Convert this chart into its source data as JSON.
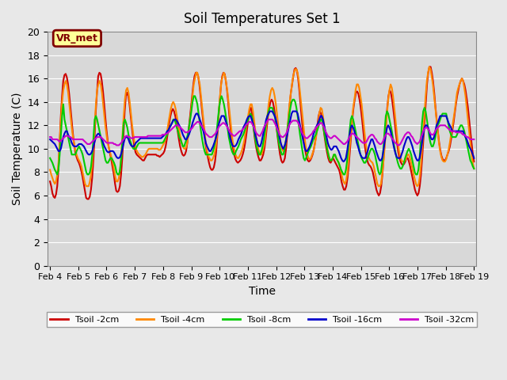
{
  "title": "Soil Temperatures Set 1",
  "xlabel": "Time",
  "ylabel": "Soil Temperature (C)",
  "ylim": [
    0,
    20
  ],
  "xlim": [
    0,
    360
  ],
  "background_color": "#e8e8e8",
  "plot_bg_color": "#d8d8d8",
  "grid_color": "#ffffff",
  "label_text": "VR_met",
  "label_bg": "#ffff99",
  "label_border": "#800000",
  "label_text_color": "#800000",
  "xtick_labels": [
    "Feb 4",
    "Feb 5",
    "Feb 6",
    "Feb 7",
    "Feb 8",
    "Feb 9",
    "Feb 10",
    "Feb 11",
    "Feb 12",
    "Feb 13",
    "Feb 14",
    "Feb 15",
    "Feb 16",
    "Feb 17",
    "Feb 18",
    "Feb 19"
  ],
  "series": {
    "Tsoil -2cm": {
      "color": "#cc0000",
      "lw": 1.5
    },
    "Tsoil -4cm": {
      "color": "#ff8800",
      "lw": 1.5
    },
    "Tsoil -8cm": {
      "color": "#00cc00",
      "lw": 1.5
    },
    "Tsoil -16cm": {
      "color": "#0000cc",
      "lw": 1.5
    },
    "Tsoil -32cm": {
      "color": "#cc00cc",
      "lw": 1.5
    }
  },
  "n_points": 361,
  "t2cm_raw": [
    7.2,
    6.8,
    6.2,
    5.9,
    5.8,
    6.1,
    6.8,
    8.2,
    10.5,
    12.8,
    14.5,
    15.8,
    16.3,
    16.4,
    16.1,
    15.5,
    14.6,
    13.5,
    12.4,
    11.3,
    10.4,
    9.7,
    9.3,
    9.0,
    8.8,
    8.5,
    8.1,
    7.6,
    7.0,
    6.4,
    5.8,
    5.7,
    5.7,
    5.9,
    6.5,
    7.5,
    9.0,
    11.0,
    13.2,
    14.8,
    16.2,
    16.5,
    16.4,
    15.8,
    14.9,
    13.8,
    12.6,
    11.5,
    10.6,
    10.0,
    9.5,
    9.0,
    8.4,
    7.8,
    7.0,
    6.4,
    6.3,
    6.4,
    6.8,
    7.8,
    9.2,
    11.2,
    13.2,
    14.5,
    14.8,
    14.5,
    13.8,
    12.8,
    11.8,
    10.9,
    10.2,
    9.7,
    9.5,
    9.4,
    9.3,
    9.2,
    9.1,
    9.0,
    9.0,
    9.2,
    9.4,
    9.5,
    9.5,
    9.5,
    9.5,
    9.5,
    9.5,
    9.5,
    9.5,
    9.4,
    9.4,
    9.3,
    9.4,
    9.5,
    9.6,
    9.8,
    10.2,
    10.8,
    11.5,
    12.2,
    12.8,
    13.2,
    13.4,
    13.2,
    12.8,
    12.2,
    11.5,
    10.8,
    10.2,
    9.8,
    9.5,
    9.4,
    9.5,
    9.8,
    10.5,
    11.5,
    12.5,
    13.5,
    14.5,
    15.5,
    16.2,
    16.5,
    16.5,
    16.2,
    15.5,
    14.5,
    13.5,
    12.5,
    11.5,
    10.5,
    9.8,
    9.3,
    8.8,
    8.4,
    8.2,
    8.2,
    8.4,
    8.9,
    9.8,
    11.2,
    12.8,
    14.2,
    15.5,
    16.2,
    16.5,
    16.4,
    15.8,
    15.0,
    13.9,
    12.7,
    11.6,
    10.7,
    10.0,
    9.5,
    9.1,
    8.9,
    8.8,
    8.9,
    9.0,
    9.2,
    9.5,
    9.9,
    10.5,
    11.2,
    12.0,
    12.8,
    13.4,
    13.5,
    12.8,
    11.8,
    10.9,
    10.2,
    9.7,
    9.3,
    9.0,
    9.0,
    9.2,
    9.5,
    10.0,
    10.8,
    11.8,
    12.8,
    13.5,
    14.0,
    14.2,
    14.0,
    13.5,
    12.8,
    11.9,
    11.0,
    10.2,
    9.5,
    9.0,
    8.8,
    8.9,
    9.2,
    10.0,
    11.2,
    12.5,
    13.8,
    14.8,
    15.5,
    16.2,
    16.8,
    16.9,
    16.7,
    16.0,
    15.0,
    13.8,
    12.6,
    11.5,
    10.5,
    9.8,
    9.3,
    9.0,
    8.9,
    9.0,
    9.2,
    9.5,
    9.9,
    10.5,
    11.2,
    12.0,
    12.8,
    13.2,
    13.0,
    12.5,
    11.8,
    11.0,
    10.3,
    9.7,
    9.2,
    8.9,
    8.8,
    9.0,
    9.2,
    9.0,
    8.8,
    8.6,
    8.4,
    8.2,
    7.8,
    7.2,
    6.8,
    6.5,
    6.5,
    6.8,
    7.5,
    8.5,
    9.8,
    11.2,
    12.5,
    13.5,
    14.2,
    14.8,
    14.9,
    14.7,
    14.2,
    13.5,
    12.6,
    11.6,
    10.6,
    9.8,
    9.2,
    8.8,
    8.6,
    8.5,
    8.3,
    8.0,
    7.5,
    7.0,
    6.5,
    6.2,
    6.0,
    6.2,
    6.8,
    7.8,
    9.2,
    10.8,
    12.2,
    13.5,
    14.5,
    15.0,
    14.8,
    14.2,
    13.4,
    12.5,
    11.5,
    10.6,
    9.8,
    9.3,
    8.9,
    8.7,
    8.6,
    8.7,
    8.9,
    9.2,
    9.2,
    8.9,
    8.5,
    8.0,
    7.5,
    7.0,
    6.5,
    6.2,
    6.0,
    6.2,
    6.8,
    7.8,
    9.2,
    10.8,
    12.5,
    14.0,
    15.5,
    16.5,
    17.0,
    17.0,
    16.5,
    15.8,
    14.8,
    13.6,
    12.5,
    11.5,
    10.6,
    9.9,
    9.4,
    9.1,
    9.0,
    9.0,
    9.2,
    9.5,
    9.8,
    10.2,
    10.8,
    11.5,
    12.2,
    13.0,
    13.8,
    14.5,
    15.0,
    15.5,
    15.8,
    16.0,
    15.8,
    15.5,
    15.0,
    14.3,
    13.5,
    12.5,
    11.5,
    10.5,
    9.6,
    8.9
  ],
  "t4cm_raw": [
    8.2,
    7.8,
    7.5,
    7.2,
    7.0,
    7.2,
    7.8,
    8.8,
    10.5,
    12.5,
    14.0,
    15.0,
    15.5,
    15.8,
    15.5,
    14.8,
    13.8,
    12.8,
    11.8,
    11.0,
    10.4,
    9.9,
    9.5,
    9.2,
    9.0,
    8.8,
    8.5,
    8.0,
    7.5,
    7.0,
    6.8,
    6.8,
    6.8,
    7.2,
    7.8,
    8.8,
    10.2,
    12.0,
    13.8,
    15.0,
    15.5,
    15.8,
    15.5,
    14.8,
    13.8,
    12.8,
    11.8,
    11.0,
    10.4,
    10.0,
    9.6,
    9.2,
    8.8,
    8.2,
    7.6,
    7.2,
    7.2,
    7.5,
    8.2,
    9.5,
    11.2,
    12.8,
    14.2,
    15.0,
    15.2,
    14.8,
    14.0,
    13.0,
    12.0,
    11.2,
    10.5,
    10.0,
    9.8,
    9.6,
    9.5,
    9.4,
    9.3,
    9.3,
    9.4,
    9.5,
    9.7,
    9.9,
    10.0,
    10.0,
    10.0,
    10.0,
    10.0,
    10.0,
    10.0,
    10.0,
    9.9,
    9.9,
    10.0,
    10.2,
    10.4,
    10.6,
    11.0,
    11.5,
    12.2,
    12.8,
    13.4,
    13.8,
    14.0,
    13.8,
    13.4,
    12.8,
    12.2,
    11.5,
    11.0,
    10.5,
    10.2,
    10.0,
    10.0,
    10.2,
    10.8,
    11.5,
    12.5,
    13.5,
    14.5,
    15.5,
    16.0,
    16.5,
    16.5,
    16.0,
    15.5,
    14.5,
    13.5,
    12.5,
    11.5,
    10.5,
    9.8,
    9.4,
    9.2,
    9.0,
    9.0,
    9.2,
    9.5,
    10.0,
    10.8,
    12.0,
    13.5,
    14.8,
    15.8,
    16.2,
    16.5,
    16.2,
    15.5,
    14.8,
    13.8,
    12.8,
    11.8,
    10.8,
    10.2,
    9.7,
    9.4,
    9.2,
    9.2,
    9.4,
    9.6,
    9.9,
    10.3,
    10.8,
    11.5,
    12.2,
    12.8,
    13.4,
    13.8,
    13.8,
    13.2,
    12.4,
    11.5,
    10.8,
    10.2,
    9.8,
    9.5,
    9.5,
    9.8,
    10.2,
    10.8,
    11.8,
    12.8,
    13.8,
    14.5,
    15.0,
    15.2,
    15.0,
    14.5,
    13.8,
    12.9,
    12.0,
    11.2,
    10.5,
    10.0,
    9.8,
    10.0,
    10.5,
    11.2,
    12.2,
    13.5,
    14.5,
    15.2,
    16.0,
    16.5,
    16.8,
    16.8,
    16.5,
    15.8,
    14.8,
    13.8,
    12.8,
    11.8,
    10.8,
    10.0,
    9.5,
    9.2,
    9.1,
    9.2,
    9.5,
    9.8,
    10.2,
    10.8,
    11.5,
    12.2,
    13.0,
    13.5,
    13.4,
    12.8,
    12.0,
    11.2,
    10.5,
    9.8,
    9.3,
    9.0,
    9.0,
    9.2,
    9.5,
    9.4,
    9.2,
    9.0,
    8.8,
    8.5,
    8.0,
    7.5,
    7.2,
    7.0,
    7.2,
    7.8,
    8.8,
    10.0,
    11.2,
    12.5,
    13.5,
    14.2,
    15.0,
    15.5,
    15.5,
    15.2,
    14.5,
    13.8,
    12.8,
    11.8,
    10.8,
    10.0,
    9.5,
    9.2,
    9.0,
    8.9,
    8.8,
    8.5,
    8.0,
    7.5,
    7.0,
    6.8,
    6.8,
    7.0,
    7.8,
    8.8,
    10.0,
    11.5,
    13.0,
    14.2,
    15.0,
    15.5,
    15.2,
    14.5,
    13.5,
    12.5,
    11.5,
    10.5,
    9.8,
    9.3,
    9.0,
    8.9,
    8.9,
    9.0,
    9.2,
    9.5,
    9.5,
    9.2,
    8.8,
    8.3,
    7.8,
    7.4,
    7.0,
    6.8,
    6.9,
    7.5,
    8.5,
    10.0,
    11.5,
    13.0,
    14.5,
    15.8,
    16.5,
    17.0,
    16.8,
    16.2,
    15.5,
    14.5,
    13.5,
    12.5,
    11.5,
    10.5,
    9.8,
    9.3,
    9.0,
    8.9,
    8.9,
    9.1,
    9.5,
    9.9,
    10.5,
    11.2,
    11.8,
    12.5,
    13.2,
    14.0,
    14.8,
    15.2,
    15.5,
    15.8,
    16.0,
    15.8,
    15.2,
    14.5,
    13.5,
    12.5,
    11.5,
    10.5,
    9.5,
    8.8,
    8.3
  ],
  "t8cm_raw": [
    9.2,
    9.0,
    8.8,
    8.5,
    8.2,
    8.0,
    7.8,
    8.2,
    9.5,
    11.2,
    12.8,
    13.8,
    12.5,
    12.0,
    11.5,
    11.0,
    10.5,
    10.0,
    9.5,
    9.5,
    9.5,
    9.5,
    9.8,
    10.0,
    10.2,
    10.0,
    9.8,
    9.5,
    9.0,
    8.5,
    8.0,
    7.8,
    7.8,
    8.0,
    8.5,
    9.5,
    11.0,
    12.5,
    12.8,
    12.5,
    12.0,
    11.5,
    11.0,
    10.5,
    10.0,
    9.5,
    9.0,
    8.8,
    8.8,
    9.0,
    9.2,
    9.2,
    9.0,
    8.8,
    8.5,
    8.0,
    7.8,
    7.8,
    8.2,
    9.2,
    10.8,
    12.2,
    12.5,
    12.2,
    11.8,
    11.2,
    10.8,
    10.5,
    10.2,
    10.0,
    10.0,
    10.0,
    10.2,
    10.4,
    10.5,
    10.5,
    10.5,
    10.5,
    10.5,
    10.5,
    10.5,
    10.5,
    10.5,
    10.5,
    10.5,
    10.5,
    10.5,
    10.5,
    10.5,
    10.5,
    10.5,
    10.5,
    10.5,
    10.5,
    10.6,
    10.8,
    11.0,
    11.2,
    11.5,
    11.8,
    12.0,
    12.2,
    12.5,
    12.5,
    12.2,
    11.8,
    11.5,
    11.0,
    10.8,
    10.5,
    10.2,
    10.2,
    10.5,
    10.8,
    11.2,
    11.8,
    12.5,
    13.2,
    14.0,
    14.5,
    14.5,
    14.2,
    13.8,
    13.0,
    12.2,
    11.5,
    10.8,
    10.2,
    9.8,
    9.5,
    9.5,
    9.5,
    9.5,
    9.5,
    9.5,
    9.8,
    10.2,
    10.8,
    11.5,
    12.5,
    13.5,
    14.2,
    14.5,
    14.2,
    13.8,
    13.2,
    12.5,
    11.8,
    11.0,
    10.5,
    10.0,
    9.7,
    9.5,
    9.5,
    9.8,
    10.0,
    10.2,
    10.5,
    10.8,
    11.0,
    11.2,
    11.5,
    11.8,
    12.2,
    12.5,
    12.8,
    13.0,
    12.8,
    12.2,
    11.5,
    10.8,
    10.2,
    9.8,
    9.5,
    9.5,
    9.8,
    10.2,
    10.8,
    11.5,
    12.2,
    12.8,
    13.2,
    13.5,
    13.5,
    13.5,
    13.2,
    12.8,
    12.2,
    11.5,
    10.8,
    10.2,
    9.8,
    9.5,
    9.5,
    9.8,
    10.5,
    11.2,
    12.0,
    12.8,
    13.5,
    14.0,
    14.2,
    14.2,
    14.0,
    13.5,
    12.8,
    12.0,
    11.2,
    10.5,
    9.8,
    9.2,
    9.0,
    9.2,
    9.5,
    9.8,
    10.0,
    10.2,
    10.5,
    10.8,
    11.0,
    11.2,
    11.5,
    11.8,
    12.2,
    12.5,
    12.5,
    12.0,
    11.4,
    10.8,
    10.2,
    9.7,
    9.3,
    9.0,
    9.0,
    9.2,
    9.5,
    9.5,
    9.2,
    9.0,
    8.8,
    8.5,
    8.2,
    8.0,
    7.8,
    7.8,
    8.2,
    9.0,
    10.2,
    11.5,
    12.5,
    12.8,
    12.5,
    12.0,
    11.5,
    11.0,
    10.5,
    10.0,
    9.5,
    9.2,
    9.0,
    8.8,
    8.8,
    9.0,
    9.2,
    9.5,
    9.8,
    10.0,
    10.0,
    9.8,
    9.5,
    9.0,
    8.5,
    8.0,
    7.8,
    8.0,
    8.8,
    10.0,
    11.5,
    12.8,
    13.2,
    13.0,
    12.5,
    12.0,
    11.5,
    10.8,
    10.2,
    9.7,
    9.2,
    8.8,
    8.5,
    8.3,
    8.3,
    8.5,
    8.8,
    9.2,
    9.5,
    9.8,
    10.0,
    9.8,
    9.5,
    9.0,
    8.5,
    8.0,
    7.8,
    7.8,
    8.2,
    9.2,
    10.8,
    12.2,
    13.2,
    13.5,
    13.2,
    12.5,
    11.8,
    11.0,
    10.5,
    10.2,
    10.2,
    10.5,
    11.0,
    11.5,
    12.0,
    12.2,
    12.5,
    12.8,
    13.0,
    13.0,
    13.0,
    13.0,
    12.5,
    12.0,
    11.5,
    11.2,
    11.0,
    11.0,
    11.0,
    11.0,
    11.2,
    11.5,
    11.8,
    12.0,
    12.0,
    11.8,
    11.5,
    11.0,
    10.5,
    10.0,
    9.5,
    9.0,
    8.8,
    8.5,
    8.3
  ],
  "t16cm_raw": [
    10.8,
    10.7,
    10.6,
    10.5,
    10.4,
    10.2,
    10.0,
    9.8,
    9.8,
    10.0,
    10.5,
    11.0,
    11.3,
    11.5,
    11.5,
    11.2,
    11.0,
    10.8,
    10.5,
    10.3,
    10.2,
    10.2,
    10.2,
    10.3,
    10.4,
    10.4,
    10.4,
    10.3,
    10.2,
    10.0,
    9.8,
    9.6,
    9.5,
    9.5,
    9.6,
    9.8,
    10.2,
    10.6,
    11.0,
    11.2,
    11.3,
    11.2,
    11.0,
    10.8,
    10.5,
    10.2,
    10.0,
    9.8,
    9.7,
    9.7,
    9.8,
    9.8,
    9.8,
    9.7,
    9.5,
    9.3,
    9.2,
    9.2,
    9.3,
    9.6,
    10.0,
    10.5,
    10.9,
    11.0,
    11.0,
    10.8,
    10.5,
    10.3,
    10.2,
    10.2,
    10.3,
    10.5,
    10.6,
    10.7,
    10.8,
    10.9,
    10.9,
    10.9,
    10.9,
    10.9,
    10.9,
    10.9,
    10.9,
    10.9,
    10.9,
    10.9,
    10.9,
    10.9,
    10.9,
    10.9,
    10.9,
    10.9,
    10.9,
    11.0,
    11.1,
    11.2,
    11.3,
    11.5,
    11.6,
    11.8,
    12.0,
    12.2,
    12.4,
    12.5,
    12.5,
    12.4,
    12.2,
    12.0,
    11.8,
    11.5,
    11.2,
    11.0,
    10.8,
    10.8,
    11.0,
    11.2,
    11.5,
    11.8,
    12.2,
    12.5,
    12.8,
    13.0,
    13.0,
    12.8,
    12.5,
    12.2,
    11.8,
    11.5,
    11.0,
    10.5,
    10.2,
    10.0,
    9.8,
    9.8,
    10.0,
    10.2,
    10.5,
    10.8,
    11.2,
    11.8,
    12.2,
    12.5,
    12.8,
    12.8,
    12.8,
    12.5,
    12.2,
    11.8,
    11.5,
    11.0,
    10.6,
    10.3,
    10.2,
    10.2,
    10.3,
    10.5,
    10.8,
    11.0,
    11.2,
    11.5,
    11.8,
    12.0,
    12.2,
    12.5,
    12.7,
    12.8,
    12.8,
    12.5,
    12.2,
    11.8,
    11.2,
    10.8,
    10.4,
    10.2,
    10.2,
    10.5,
    11.0,
    11.5,
    12.0,
    12.5,
    12.8,
    13.0,
    13.2,
    13.2,
    13.2,
    13.0,
    12.8,
    12.5,
    12.0,
    11.5,
    11.0,
    10.5,
    10.2,
    10.0,
    10.2,
    10.5,
    11.0,
    11.5,
    12.0,
    12.5,
    13.0,
    13.2,
    13.2,
    13.2,
    13.2,
    13.0,
    12.5,
    12.0,
    11.5,
    11.0,
    10.5,
    10.0,
    9.8,
    9.8,
    10.0,
    10.2,
    10.5,
    10.8,
    11.2,
    11.5,
    11.8,
    12.0,
    12.2,
    12.5,
    12.8,
    12.8,
    12.5,
    12.0,
    11.5,
    11.0,
    10.5,
    10.2,
    10.0,
    9.9,
    10.0,
    10.2,
    10.2,
    10.2,
    10.0,
    9.8,
    9.5,
    9.2,
    9.0,
    8.9,
    9.0,
    9.2,
    9.8,
    10.5,
    11.2,
    11.8,
    12.0,
    11.8,
    11.5,
    11.0,
    10.5,
    10.2,
    9.8,
    9.5,
    9.3,
    9.2,
    9.2,
    9.2,
    9.5,
    9.8,
    10.2,
    10.5,
    10.8,
    10.8,
    10.5,
    10.2,
    9.8,
    9.5,
    9.2,
    9.0,
    9.0,
    9.2,
    9.8,
    10.5,
    11.2,
    11.8,
    12.0,
    11.8,
    11.5,
    11.0,
    10.5,
    10.0,
    9.6,
    9.3,
    9.2,
    9.2,
    9.2,
    9.5,
    9.8,
    10.2,
    10.5,
    10.8,
    11.0,
    11.0,
    10.8,
    10.5,
    10.2,
    9.8,
    9.5,
    9.2,
    9.0,
    9.0,
    9.2,
    9.8,
    10.5,
    11.2,
    11.8,
    12.0,
    12.0,
    11.8,
    11.5,
    11.0,
    10.8,
    10.8,
    11.0,
    11.5,
    12.0,
    12.2,
    12.5,
    12.8,
    12.8,
    12.8,
    12.8,
    12.8,
    12.8,
    12.5,
    12.2,
    12.0,
    11.8,
    11.5,
    11.5,
    11.5,
    11.5,
    11.5,
    11.5,
    11.5,
    11.5,
    11.5,
    11.5,
    11.2,
    11.0,
    10.8,
    10.5,
    10.2,
    10.0,
    9.8,
    9.5,
    9.2
  ],
  "t32cm_raw": [
    11.0,
    11.0,
    10.8,
    10.8,
    10.8,
    10.8,
    10.8,
    10.7,
    10.6,
    10.7,
    10.8,
    10.9,
    11.0,
    11.1,
    11.1,
    11.1,
    11.0,
    11.0,
    10.9,
    10.8,
    10.8,
    10.8,
    10.8,
    10.8,
    10.8,
    10.8,
    10.8,
    10.8,
    10.7,
    10.6,
    10.5,
    10.4,
    10.4,
    10.4,
    10.5,
    10.6,
    10.7,
    10.8,
    10.9,
    11.0,
    11.0,
    11.0,
    11.0,
    10.9,
    10.8,
    10.7,
    10.6,
    10.5,
    10.5,
    10.5,
    10.5,
    10.5,
    10.5,
    10.4,
    10.4,
    10.3,
    10.3,
    10.3,
    10.4,
    10.5,
    10.7,
    10.8,
    11.0,
    11.1,
    11.1,
    11.0,
    11.0,
    10.9,
    10.9,
    10.9,
    11.0,
    11.0,
    11.0,
    11.0,
    11.0,
    11.0,
    11.0,
    11.0,
    11.0,
    11.0,
    11.0,
    11.1,
    11.1,
    11.1,
    11.1,
    11.1,
    11.1,
    11.1,
    11.1,
    11.1,
    11.1,
    11.1,
    11.1,
    11.2,
    11.2,
    11.2,
    11.3,
    11.3,
    11.4,
    11.5,
    11.6,
    11.7,
    11.8,
    11.9,
    12.0,
    12.0,
    12.0,
    11.9,
    11.8,
    11.7,
    11.6,
    11.5,
    11.4,
    11.4,
    11.4,
    11.5,
    11.6,
    11.7,
    11.8,
    12.0,
    12.1,
    12.2,
    12.3,
    12.3,
    12.2,
    12.0,
    11.9,
    11.7,
    11.5,
    11.3,
    11.2,
    11.1,
    11.0,
    11.0,
    11.0,
    11.1,
    11.2,
    11.3,
    11.5,
    11.7,
    11.9,
    12.0,
    12.1,
    12.2,
    12.2,
    12.1,
    12.0,
    11.8,
    11.6,
    11.4,
    11.3,
    11.2,
    11.1,
    11.1,
    11.2,
    11.3,
    11.4,
    11.5,
    11.5,
    11.6,
    11.7,
    11.8,
    12.0,
    12.1,
    12.2,
    12.3,
    12.3,
    12.2,
    12.0,
    11.8,
    11.5,
    11.3,
    11.2,
    11.1,
    11.1,
    11.3,
    11.5,
    11.8,
    12.0,
    12.2,
    12.4,
    12.5,
    12.5,
    12.5,
    12.5,
    12.4,
    12.2,
    12.0,
    11.7,
    11.5,
    11.2,
    11.1,
    11.0,
    11.0,
    11.1,
    11.2,
    11.4,
    11.7,
    12.0,
    12.2,
    12.3,
    12.4,
    12.4,
    12.4,
    12.4,
    12.3,
    12.1,
    11.8,
    11.5,
    11.3,
    11.1,
    11.0,
    10.9,
    10.9,
    11.0,
    11.1,
    11.2,
    11.3,
    11.5,
    11.6,
    11.8,
    11.9,
    12.0,
    12.1,
    12.2,
    12.2,
    12.0,
    11.8,
    11.5,
    11.3,
    11.1,
    11.0,
    10.9,
    10.9,
    11.0,
    11.1,
    11.1,
    11.0,
    10.9,
    10.8,
    10.7,
    10.6,
    10.5,
    10.4,
    10.4,
    10.5,
    10.6,
    10.8,
    11.0,
    11.2,
    11.3,
    11.3,
    11.2,
    11.1,
    11.0,
    10.9,
    10.8,
    10.7,
    10.6,
    10.5,
    10.5,
    10.5,
    10.6,
    10.8,
    11.0,
    11.1,
    11.2,
    11.2,
    11.1,
    10.9,
    10.8,
    10.6,
    10.5,
    10.4,
    10.4,
    10.5,
    10.7,
    11.0,
    11.2,
    11.3,
    11.3,
    11.2,
    11.1,
    10.9,
    10.8,
    10.6,
    10.5,
    10.4,
    10.3,
    10.3,
    10.4,
    10.6,
    10.8,
    11.0,
    11.2,
    11.3,
    11.4,
    11.4,
    11.3,
    11.1,
    11.0,
    10.8,
    10.6,
    10.5,
    10.4,
    10.5,
    10.6,
    10.9,
    11.2,
    11.5,
    11.7,
    11.8,
    11.8,
    11.7,
    11.5,
    11.3,
    11.2,
    11.2,
    11.3,
    11.5,
    11.7,
    11.8,
    11.9,
    12.0,
    12.0,
    12.0,
    12.0,
    12.0,
    11.9,
    11.8,
    11.7,
    11.6,
    11.5,
    11.5,
    11.5,
    11.5,
    11.4,
    11.4,
    11.4,
    11.4,
    11.4,
    11.3,
    11.2,
    11.2,
    11.1,
    11.0,
    11.0,
    10.9,
    10.8,
    10.8,
    10.8,
    10.8
  ]
}
